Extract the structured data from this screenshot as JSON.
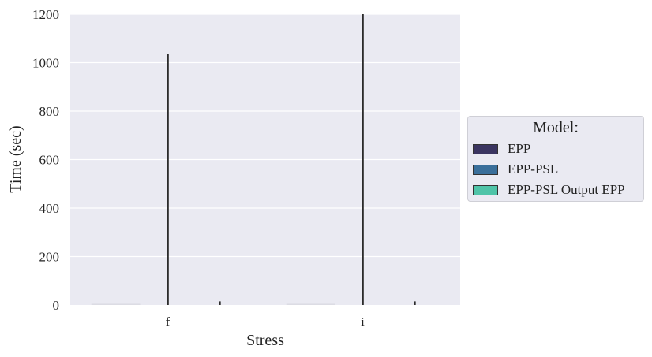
{
  "chart_data": {
    "type": "bar",
    "title": "",
    "xlabel": "Stress",
    "ylabel": "Time (sec)",
    "ylim": [
      0,
      1200
    ],
    "yticks": [
      0,
      200,
      400,
      600,
      800,
      1000,
      1200
    ],
    "categories": [
      "f",
      "i"
    ],
    "series": [
      {
        "name": "EPP",
        "color": "#3b3561",
        "values": [
          5,
          5
        ],
        "err_low": [
          0,
          0
        ],
        "err_high": [
          0,
          0
        ]
      },
      {
        "name": "EPP-PSL",
        "color": "#3a6f9a",
        "values": [
          0,
          0
        ],
        "err_low": [
          0,
          0
        ],
        "err_high": [
          1035,
          1200
        ]
      },
      {
        "name": "EPP-PSL Output EPP",
        "color": "#4fc4a8",
        "values": [
          0,
          0
        ],
        "err_low": [
          0,
          0
        ],
        "err_high": [
          15,
          15
        ]
      }
    ],
    "grid": true,
    "legend_position": "right",
    "legend_title": "Model:"
  }
}
